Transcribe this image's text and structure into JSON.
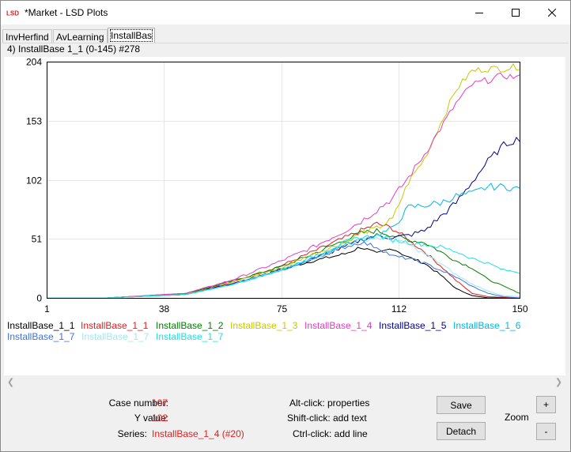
{
  "window": {
    "title": "*Market - LSD Plots",
    "icon": "lsd-logo-icon"
  },
  "tabs": [
    {
      "label": "InvHerfind"
    },
    {
      "label": "AvLearning"
    },
    {
      "label": "InstallBas",
      "active": true
    }
  ],
  "plot_header": "4) InstallBase 1_1 (0-145) #278",
  "chart_data": {
    "type": "line",
    "title": "",
    "xlabel": "",
    "ylabel": "",
    "xlim": [
      1,
      150
    ],
    "ylim": [
      0,
      204
    ],
    "x_ticks": [
      "1",
      "38",
      "75",
      "112",
      "150"
    ],
    "y_ticks": [
      "0",
      "51",
      "102",
      "153",
      "204"
    ],
    "grid": true,
    "series": [
      {
        "name": "InstallBase_1_1",
        "color": "#000000",
        "points": [
          [
            1,
            0
          ],
          [
            20,
            0
          ],
          [
            45,
            3
          ],
          [
            60,
            12
          ],
          [
            75,
            25
          ],
          [
            85,
            32
          ],
          [
            95,
            38
          ],
          [
            100,
            44
          ],
          [
            105,
            38
          ],
          [
            110,
            43
          ],
          [
            115,
            35
          ],
          [
            120,
            30
          ],
          [
            125,
            20
          ],
          [
            130,
            8
          ],
          [
            135,
            2
          ],
          [
            140,
            0
          ],
          [
            150,
            0
          ]
        ]
      },
      {
        "name": "InstallBase_1_1",
        "color": "#e02020",
        "points": [
          [
            1,
            0
          ],
          [
            20,
            0
          ],
          [
            45,
            4
          ],
          [
            60,
            14
          ],
          [
            75,
            28
          ],
          [
            85,
            40
          ],
          [
            95,
            52
          ],
          [
            100,
            58
          ],
          [
            105,
            64
          ],
          [
            110,
            60
          ],
          [
            115,
            50
          ],
          [
            120,
            40
          ],
          [
            125,
            28
          ],
          [
            130,
            15
          ],
          [
            135,
            4
          ],
          [
            140,
            1
          ],
          [
            150,
            0
          ]
        ]
      },
      {
        "name": "InstallBase_1_2",
        "color": "#008000",
        "points": [
          [
            1,
            0
          ],
          [
            20,
            0
          ],
          [
            45,
            4
          ],
          [
            60,
            15
          ],
          [
            75,
            27
          ],
          [
            85,
            38
          ],
          [
            95,
            50
          ],
          [
            100,
            56
          ],
          [
            105,
            58
          ],
          [
            110,
            54
          ],
          [
            115,
            50
          ],
          [
            120,
            48
          ],
          [
            125,
            40
          ],
          [
            130,
            32
          ],
          [
            135,
            26
          ],
          [
            140,
            16
          ],
          [
            145,
            10
          ],
          [
            150,
            4
          ]
        ]
      },
      {
        "name": "InstallBase_1_3",
        "color": "#c8c800",
        "points": [
          [
            1,
            0
          ],
          [
            20,
            0
          ],
          [
            45,
            3
          ],
          [
            60,
            14
          ],
          [
            75,
            26
          ],
          [
            85,
            38
          ],
          [
            95,
            48
          ],
          [
            100,
            56
          ],
          [
            105,
            60
          ],
          [
            110,
            68
          ],
          [
            115,
            100
          ],
          [
            120,
            120
          ],
          [
            125,
            150
          ],
          [
            130,
            180
          ],
          [
            135,
            196
          ],
          [
            140,
            198
          ],
          [
            145,
            198
          ],
          [
            150,
            200
          ]
        ]
      },
      {
        "name": "InstallBase_1_4",
        "color": "#e040c0",
        "points": [
          [
            1,
            0
          ],
          [
            20,
            0
          ],
          [
            45,
            4
          ],
          [
            60,
            16
          ],
          [
            75,
            32
          ],
          [
            85,
            44
          ],
          [
            95,
            58
          ],
          [
            100,
            66
          ],
          [
            105,
            76
          ],
          [
            110,
            86
          ],
          [
            115,
            104
          ],
          [
            120,
            124
          ],
          [
            125,
            146
          ],
          [
            130,
            168
          ],
          [
            135,
            184
          ],
          [
            140,
            188
          ],
          [
            145,
            192
          ],
          [
            150,
            190
          ]
        ]
      },
      {
        "name": "InstallBase_1_5",
        "color": "#000090",
        "points": [
          [
            1,
            0
          ],
          [
            20,
            0
          ],
          [
            45,
            3
          ],
          [
            60,
            13
          ],
          [
            75,
            24
          ],
          [
            85,
            34
          ],
          [
            95,
            44
          ],
          [
            100,
            50
          ],
          [
            105,
            54
          ],
          [
            110,
            52
          ],
          [
            115,
            54
          ],
          [
            120,
            58
          ],
          [
            125,
            70
          ],
          [
            130,
            82
          ],
          [
            135,
            100
          ],
          [
            140,
            118
          ],
          [
            145,
            132
          ],
          [
            150,
            138
          ]
        ]
      },
      {
        "name": "InstallBase_1_6",
        "color": "#00b8e0",
        "points": [
          [
            1,
            0
          ],
          [
            20,
            0
          ],
          [
            45,
            3
          ],
          [
            60,
            12
          ],
          [
            75,
            24
          ],
          [
            85,
            34
          ],
          [
            95,
            46
          ],
          [
            100,
            50
          ],
          [
            105,
            54
          ],
          [
            110,
            60
          ],
          [
            115,
            78
          ],
          [
            120,
            80
          ],
          [
            125,
            82
          ],
          [
            130,
            88
          ],
          [
            135,
            90
          ],
          [
            140,
            96
          ],
          [
            145,
            96
          ],
          [
            150,
            94
          ]
        ]
      },
      {
        "name": "InstallBase_1_7",
        "color": "#4070e0",
        "points": [
          [
            1,
            0
          ],
          [
            20,
            0
          ],
          [
            45,
            3
          ],
          [
            60,
            12
          ],
          [
            75,
            24
          ],
          [
            85,
            34
          ],
          [
            95,
            44
          ],
          [
            100,
            48
          ],
          [
            105,
            44
          ],
          [
            110,
            36
          ],
          [
            115,
            34
          ],
          [
            120,
            30
          ],
          [
            125,
            24
          ],
          [
            130,
            18
          ],
          [
            135,
            10
          ],
          [
            140,
            4
          ],
          [
            145,
            1
          ],
          [
            150,
            0
          ]
        ]
      },
      {
        "name": "InstallBase_1_7",
        "color": "#a0e8f0",
        "points": [
          [
            1,
            0
          ],
          [
            20,
            0
          ],
          [
            45,
            3
          ],
          [
            60,
            12
          ],
          [
            75,
            24
          ],
          [
            85,
            34
          ],
          [
            95,
            46
          ],
          [
            100,
            50
          ],
          [
            105,
            52
          ],
          [
            110,
            50
          ],
          [
            115,
            46
          ],
          [
            120,
            38
          ],
          [
            125,
            30
          ],
          [
            130,
            20
          ],
          [
            135,
            12
          ],
          [
            140,
            6
          ],
          [
            145,
            2
          ],
          [
            150,
            1
          ]
        ]
      },
      {
        "name": "InstallBase_1_7",
        "color": "#20e0e0",
        "points": [
          [
            1,
            0
          ],
          [
            20,
            0
          ],
          [
            45,
            3
          ],
          [
            60,
            12
          ],
          [
            75,
            24
          ],
          [
            85,
            36
          ],
          [
            95,
            48
          ],
          [
            100,
            52
          ],
          [
            105,
            54
          ],
          [
            110,
            50
          ],
          [
            115,
            48
          ],
          [
            120,
            46
          ],
          [
            125,
            44
          ],
          [
            130,
            40
          ],
          [
            135,
            34
          ],
          [
            140,
            30
          ],
          [
            145,
            24
          ],
          [
            150,
            22
          ]
        ]
      }
    ]
  },
  "info": {
    "case_number_label": "Case number:",
    "case_number_value": "107",
    "y_value_label": "Y value:",
    "y_value_value": "102",
    "series_label": "Series:",
    "series_value": "InstallBase_1_4 (#20)"
  },
  "hints": {
    "alt": "Alt-click: properties",
    "shift": "Shift-click: add text",
    "ctrl": "Ctrl-click: add line"
  },
  "buttons": {
    "save": "Save",
    "detach": "Detach",
    "zoom_label": "Zoom",
    "zoom_in": "+",
    "zoom_out": "-"
  }
}
